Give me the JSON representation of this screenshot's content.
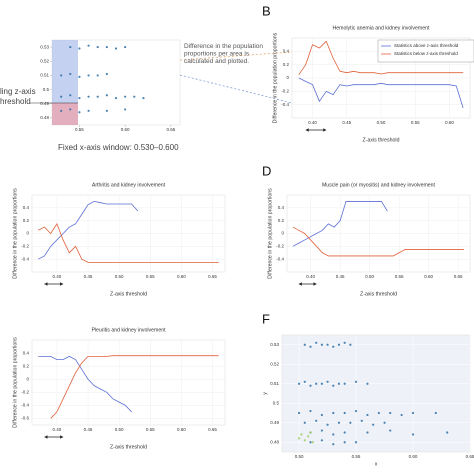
{
  "chart_data": [
    {
      "type": "scatter",
      "annotations": [
        "Difference in the population proportions per area is calculated and plotted.",
        "ling z-axis",
        "hreshold",
        "Fixed x-axis window: 0.530–0.600"
      ],
      "xlim": [
        0.52,
        0.66
      ],
      "xticks": [
        0.55,
        {
          "value": 0.6,
          "label": "0.60"
        },
        0.65
      ],
      "ylim": [
        0.475,
        0.535
      ],
      "yticks": [
        0.48,
        0.49,
        0.5,
        0.51,
        0.52,
        0.53
      ],
      "series": [
        {
          "color": "#2a6fa8",
          "x": [
            0.54,
            0.55,
            0.56,
            0.57,
            0.58,
            0.59,
            0.6,
            0.53,
            0.54,
            0.55,
            0.56,
            0.57,
            0.58,
            0.53,
            0.54,
            0.55,
            0.56,
            0.57,
            0.58,
            0.59,
            0.6,
            0.61,
            0.62,
            0.53,
            0.54,
            0.55,
            0.56,
            0.58,
            0.6
          ],
          "values": [
            0.53,
            0.529,
            0.531,
            0.53,
            0.53,
            0.529,
            0.53,
            0.51,
            0.511,
            0.509,
            0.51,
            0.51,
            0.511,
            0.495,
            0.496,
            0.494,
            0.495,
            0.495,
            0.496,
            0.494,
            0.495,
            0.495,
            0.494,
            0.485,
            0.486,
            0.484,
            0.485,
            0.485,
            0.486
          ]
        }
      ]
    },
    {
      "type": "line",
      "letter": "B",
      "title": "Hemolytic anemia and kidney involvement",
      "xlabel": "Z-axis threshold",
      "ylabel": "Difference in the population proportions",
      "legend": "upper right",
      "x": [
        0.38,
        0.39,
        0.4,
        0.41,
        0.42,
        0.43,
        0.44,
        0.45,
        0.46,
        0.47,
        0.48,
        0.49,
        0.5,
        0.51,
        0.52,
        0.53,
        0.54,
        0.55,
        0.56,
        0.57,
        0.58,
        0.59,
        0.6,
        0.61,
        0.62
      ],
      "xlim": [
        0.37,
        0.63
      ],
      "xticks": [
        {
          "value": 0.4,
          "label": "0.40"
        },
        0.45,
        {
          "value": 0.5,
          "label": "0.50"
        },
        0.55,
        {
          "value": 0.6,
          "label": "0.60"
        }
      ],
      "ylim": [
        -0.6,
        0.6
      ],
      "yticks": [
        -0.4,
        -0.2,
        0,
        0.2,
        0.4
      ],
      "grid": true,
      "series": [
        {
          "name": "Statistics above z-axis threshold",
          "color": "#5b6fd6",
          "values": [
            0,
            -0.05,
            -0.1,
            -0.35,
            -0.2,
            -0.25,
            -0.1,
            -0.12,
            -0.1,
            -0.1,
            -0.1,
            -0.1,
            -0.08,
            -0.1,
            -0.1,
            -0.1,
            -0.1,
            -0.1,
            -0.1,
            -0.1,
            -0.1,
            -0.1,
            -0.1,
            -0.12,
            -0.45
          ]
        },
        {
          "name": "Statistics below z-axis threshold",
          "color": "#e0603a",
          "values": [
            0.05,
            0.2,
            0.5,
            0.45,
            0.55,
            0.3,
            0.1,
            0.08,
            0.1,
            0.08,
            0.08,
            0.08,
            0.06,
            0.08,
            0.08,
            0.08,
            0.08,
            0.08,
            0.08,
            0.08,
            0.08,
            0.08,
            0.08,
            0.08,
            0.08
          ]
        }
      ]
    },
    {
      "type": "line",
      "title": "Arthritis and kidney involvement",
      "xlabel": "Z-axis threshold",
      "ylabel": "Difference in the population proportions",
      "x": [
        0.37,
        0.38,
        0.39,
        0.4,
        0.41,
        0.42,
        0.43,
        0.44,
        0.45,
        0.46,
        0.47,
        0.48,
        0.49,
        0.5,
        0.51,
        0.52,
        0.53,
        0.54,
        0.55,
        0.56,
        0.57,
        0.58,
        0.59,
        0.6,
        0.61,
        0.62,
        0.63,
        0.64,
        0.65,
        0.66
      ],
      "xlim": [
        0.36,
        0.67
      ],
      "xticks": [
        {
          "value": 0.4,
          "label": "0.40"
        },
        0.45,
        {
          "value": 0.5,
          "label": "0.50"
        },
        0.55,
        {
          "value": 0.6,
          "label": "0.60"
        },
        0.65
      ],
      "ylim": [
        -0.6,
        0.6
      ],
      "yticks": [
        -0.4,
        -0.2,
        0,
        0.2,
        0.4
      ],
      "grid": true,
      "series": [
        {
          "color": "#5b6fd6",
          "values": [
            -0.4,
            -0.35,
            -0.2,
            -0.1,
            0,
            0.1,
            0.15,
            0.3,
            0.45,
            0.5,
            0.48,
            0.46,
            0.46,
            0.46,
            0.46,
            0.46,
            0.35,
            null,
            null,
            null,
            null,
            null,
            null,
            null,
            null,
            null,
            null,
            null,
            null,
            null
          ]
        },
        {
          "color": "#e0603a",
          "values": [
            0.05,
            0.1,
            0,
            0.15,
            -0.1,
            -0.3,
            -0.2,
            -0.4,
            -0.45,
            -0.45,
            -0.45,
            -0.45,
            -0.45,
            -0.45,
            -0.45,
            -0.45,
            -0.45,
            -0.45,
            -0.45,
            -0.45,
            -0.45,
            -0.45,
            -0.45,
            -0.45,
            -0.45,
            -0.45,
            -0.45,
            -0.45,
            -0.45,
            -0.45
          ]
        }
      ]
    },
    {
      "type": "line",
      "letter": "D",
      "title": "Muscle pain (or myositis) and kidney involvement",
      "xlabel": "Z-axis threshold",
      "ylabel": "Difference in the population proportions",
      "x": [
        0.37,
        0.38,
        0.39,
        0.4,
        0.41,
        0.42,
        0.43,
        0.44,
        0.45,
        0.46,
        0.47,
        0.48,
        0.49,
        0.5,
        0.51,
        0.52,
        0.53,
        0.54,
        0.55,
        0.56,
        0.57,
        0.58,
        0.59,
        0.6,
        0.61,
        0.62,
        0.63,
        0.64,
        0.65,
        0.66
      ],
      "xlim": [
        0.36,
        0.67
      ],
      "xticks": [
        {
          "value": 0.4,
          "label": "0.40"
        },
        0.45,
        {
          "value": 0.5,
          "label": "0.50"
        },
        0.55,
        {
          "value": 0.6,
          "label": "0.60"
        },
        0.65
      ],
      "ylim": [
        -0.6,
        0.6
      ],
      "yticks": [
        -0.4,
        -0.2,
        0,
        0.2,
        0.4
      ],
      "grid": true,
      "series": [
        {
          "color": "#5b6fd6",
          "values": [
            -0.2,
            -0.15,
            -0.1,
            -0.05,
            0,
            0.05,
            0.15,
            0.1,
            0.2,
            0.5,
            0.5,
            0.5,
            0.5,
            0.5,
            0.5,
            0.5,
            0.35,
            null,
            null,
            null,
            null,
            null,
            null,
            null,
            null,
            null,
            null,
            null,
            null,
            null
          ]
        },
        {
          "color": "#e0603a",
          "values": [
            0.1,
            0.05,
            0,
            -0.1,
            -0.2,
            -0.3,
            -0.35,
            -0.35,
            -0.35,
            -0.35,
            -0.35,
            -0.35,
            -0.35,
            -0.35,
            -0.35,
            -0.35,
            -0.35,
            -0.35,
            -0.3,
            -0.25,
            -0.25,
            -0.25,
            -0.25,
            -0.25,
            -0.25,
            -0.25,
            -0.25,
            -0.25,
            -0.25,
            -0.25
          ]
        }
      ]
    },
    {
      "type": "line",
      "title": "Pleuritis and kidney involvement",
      "xlabel": "Z-axis threshold",
      "ylabel": "Difference in the population proportions",
      "x": [
        0.37,
        0.38,
        0.39,
        0.4,
        0.41,
        0.42,
        0.43,
        0.44,
        0.45,
        0.46,
        0.47,
        0.48,
        0.49,
        0.5,
        0.51,
        0.52,
        0.53,
        0.54,
        0.55,
        0.56,
        0.57,
        0.58,
        0.59,
        0.6,
        0.61,
        0.62,
        0.63,
        0.64,
        0.65,
        0.66
      ],
      "xlim": [
        0.36,
        0.67
      ],
      "xticks": [
        {
          "value": 0.4,
          "label": "0.40"
        },
        0.45,
        {
          "value": 0.5,
          "label": "0.50"
        },
        0.55,
        {
          "value": 0.6,
          "label": "0.60"
        },
        0.65
      ],
      "ylim": [
        -0.7,
        0.6
      ],
      "yticks": [
        -0.6,
        -0.4,
        -0.2,
        0,
        0.2,
        0.4
      ],
      "grid": true,
      "series": [
        {
          "color": "#5b6fd6",
          "values": [
            0.35,
            0.35,
            0.35,
            0.3,
            0.3,
            0.35,
            0.3,
            0.15,
            0,
            -0.1,
            -0.15,
            -0.2,
            -0.3,
            -0.35,
            -0.4,
            -0.5,
            null,
            null,
            null,
            null,
            null,
            null,
            null,
            null,
            null,
            null,
            null,
            null,
            null,
            null
          ]
        },
        {
          "color": "#e0603a",
          "values": [
            null,
            null,
            -0.6,
            -0.5,
            -0.3,
            -0.1,
            0.1,
            0.25,
            0.35,
            0.35,
            0.35,
            0.35,
            0.36,
            0.36,
            0.36,
            0.36,
            0.36,
            0.36,
            0.36,
            0.36,
            0.36,
            0.36,
            0.36,
            0.36,
            0.36,
            0.36,
            0.36,
            0.36,
            0.36,
            0.36
          ]
        }
      ]
    },
    {
      "type": "scatter",
      "letter": "F",
      "xlabel": "x",
      "ylabel": "y",
      "xlim": [
        0.485,
        0.65
      ],
      "xticks": [
        {
          "value": 0.5,
          "label": "0.50"
        },
        0.55,
        {
          "value": 0.6,
          "label": "0.60"
        },
        0.65
      ],
      "ylim": [
        0.475,
        0.535
      ],
      "yticks": [
        0.48,
        0.49,
        0.5,
        0.51,
        0.52,
        0.53
      ],
      "grid": true,
      "series": [
        {
          "color": "#2a6fa8",
          "x": [
            0.505,
            0.51,
            0.515,
            0.52,
            0.525,
            0.53,
            0.535,
            0.54,
            0.545,
            0.5,
            0.505,
            0.51,
            0.515,
            0.52,
            0.525,
            0.53,
            0.535,
            0.54,
            0.55,
            0.56,
            0.5,
            0.51,
            0.52,
            0.53,
            0.54,
            0.55,
            0.56,
            0.57,
            0.58,
            0.59,
            0.6,
            0.62,
            0.505,
            0.515,
            0.525,
            0.535,
            0.545,
            0.555,
            0.565,
            0.575,
            0.51,
            0.52,
            0.53,
            0.54,
            0.56,
            0.58,
            0.6,
            0.63,
            0.51,
            0.52,
            0.53,
            0.54,
            0.55
          ],
          "values": [
            0.53,
            0.529,
            0.531,
            0.53,
            0.53,
            0.529,
            0.53,
            0.531,
            0.53,
            0.51,
            0.511,
            0.509,
            0.51,
            0.51,
            0.511,
            0.509,
            0.51,
            0.51,
            0.511,
            0.51,
            0.495,
            0.496,
            0.494,
            0.495,
            0.495,
            0.496,
            0.494,
            0.495,
            0.495,
            0.494,
            0.495,
            0.495,
            0.49,
            0.491,
            0.489,
            0.49,
            0.49,
            0.491,
            0.489,
            0.49,
            0.485,
            0.486,
            0.484,
            0.485,
            0.485,
            0.486,
            0.484,
            0.485,
            0.48,
            0.481,
            0.479,
            0.48,
            0.48
          ]
        },
        {
          "color": "#9acd5a",
          "x": [
            0.5,
            0.502,
            0.505,
            0.508,
            0.51,
            0.512
          ],
          "values": [
            0.482,
            0.484,
            0.481,
            0.483,
            0.485,
            0.48
          ]
        }
      ]
    }
  ]
}
